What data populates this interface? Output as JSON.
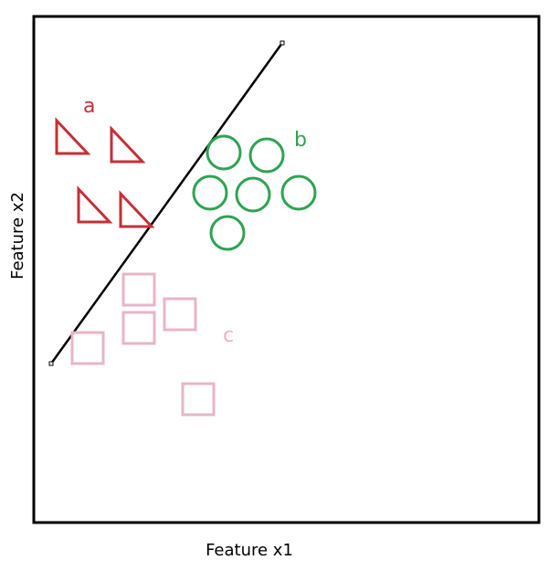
{
  "axes": {
    "x_label": "Feature x1",
    "y_label": "Feature x2"
  },
  "classes": [
    {
      "label": "a",
      "shape": "triangle",
      "color": "#c62f37",
      "count": 4
    },
    {
      "label": "b",
      "shape": "circle",
      "color": "#2ea352",
      "count": 6
    },
    {
      "label": "c",
      "shape": "square",
      "color": "#e8b4c8",
      "count": 5
    }
  ],
  "boundary": {
    "color": "#000000"
  }
}
